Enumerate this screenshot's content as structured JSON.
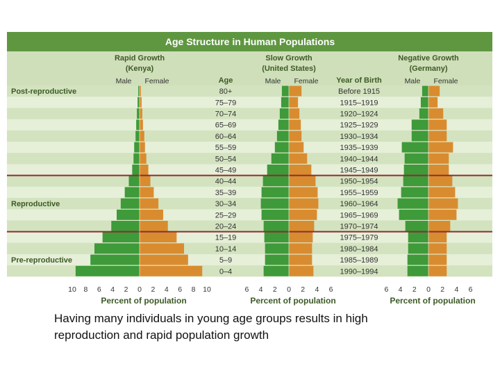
{
  "colors": {
    "header_bg": "#5f9741",
    "panel_bg": "#e6efd8",
    "pyramid_head_bg": "#cfdfb9",
    "row_band": "#d3e3bf",
    "divider": "#8c2b35",
    "male_bar": "#3f9a3a",
    "female_bar": "#d98c2f",
    "title_text": "#ffffff",
    "label_text": "#3c5a26"
  },
  "caption": {
    "line1": "Having many individuals in young age groups results in high",
    "line2": "reproduction and rapid population growth"
  },
  "chart_data": {
    "type": "bar",
    "orientation": "horizontal",
    "style": "population-pyramid",
    "title": "Age Structure in Human Populations",
    "age_header": "Age",
    "birth_header": "Year of Birth",
    "male_label": "Male",
    "female_label": "Female",
    "xlabel": "Percent of population",
    "categories": [
      "80+",
      "75–79",
      "70–74",
      "65–69",
      "60–64",
      "55–59",
      "50–54",
      "45–49",
      "40–44",
      "35–39",
      "30–34",
      "25–29",
      "20–24",
      "15–19",
      "10–14",
      "5–9",
      "0–4"
    ],
    "birth_years": [
      "Before 1915",
      "1915–1919",
      "1920–1924",
      "1925–1929",
      "1930–1934",
      "1935–1939",
      "1940–1944",
      "1945–1949",
      "1950–1954",
      "1955–1959",
      "1960–1964",
      "1965–1969",
      "1970–1974",
      "1975–1979",
      "1980–1984",
      "1985–1989",
      "1990–1994"
    ],
    "stages": [
      {
        "label": "Post-reproductive",
        "rows": [
          "80+",
          "45–49"
        ]
      },
      {
        "label": "Reproductive",
        "rows": [
          "40–44",
          "20–24"
        ]
      },
      {
        "label": "Pre-reproductive",
        "rows": [
          "15–19",
          "0–4"
        ]
      }
    ],
    "pyramids": [
      {
        "title": "Rapid Growth",
        "country": "(Kenya)",
        "xlim": [
          -10,
          10
        ],
        "ticks": [
          10,
          8,
          6,
          4,
          2,
          0,
          2,
          4,
          6,
          8,
          10
        ],
        "male": [
          0.2,
          0.3,
          0.4,
          0.5,
          0.6,
          0.8,
          0.9,
          1.1,
          1.6,
          2.2,
          2.8,
          3.4,
          4.2,
          5.5,
          6.7,
          7.3,
          9.5
        ],
        "female": [
          0.2,
          0.3,
          0.4,
          0.5,
          0.7,
          0.8,
          1.0,
          1.3,
          1.6,
          2.1,
          2.8,
          3.5,
          4.2,
          5.5,
          6.6,
          7.2,
          9.3
        ]
      },
      {
        "title": "Slow Growth",
        "country": "(United States)",
        "xlim": [
          -6,
          6
        ],
        "ticks": [
          6,
          4,
          2,
          0,
          2,
          4,
          6
        ],
        "male": [
          1.0,
          1.1,
          1.3,
          1.5,
          1.7,
          2.0,
          2.5,
          3.1,
          3.7,
          3.9,
          4.0,
          3.9,
          3.6,
          3.5,
          3.4,
          3.4,
          3.6
        ],
        "female": [
          1.8,
          1.3,
          1.5,
          1.7,
          1.8,
          2.1,
          2.6,
          3.2,
          3.8,
          4.1,
          4.2,
          4.0,
          3.6,
          3.4,
          3.3,
          3.3,
          3.5
        ]
      },
      {
        "title": "Negative Growth",
        "country": "(Germany)",
        "xlim": [
          -6,
          6
        ],
        "ticks": [
          6,
          4,
          2,
          0,
          2,
          4,
          6
        ],
        "male": [
          0.9,
          1.1,
          1.3,
          2.4,
          2.4,
          3.8,
          3.4,
          3.5,
          3.6,
          3.9,
          4.4,
          4.2,
          3.3,
          2.9,
          2.9,
          3.0,
          3.0
        ],
        "female": [
          1.6,
          1.3,
          2.1,
          2.6,
          2.6,
          3.5,
          2.9,
          2.9,
          3.4,
          3.8,
          4.2,
          4.0,
          3.1,
          2.6,
          2.6,
          2.6,
          2.6
        ]
      }
    ]
  }
}
